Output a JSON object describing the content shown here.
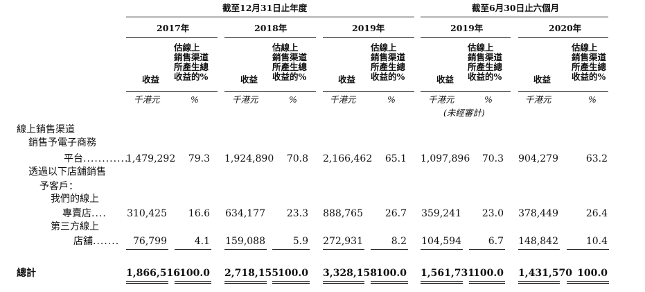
{
  "header": {
    "period_full_year": "截至12月31日止年度",
    "period_six_months": "截至6月30日止六個月",
    "years": [
      "2017年",
      "2018年",
      "2019年",
      "2019年",
      "2020年"
    ],
    "col_revenue": "收益",
    "col_pct_lines": [
      "估線上",
      "銷售渠道",
      "所產生總",
      "收益的%"
    ],
    "unit_revenue": "千港元",
    "unit_pct": "%",
    "unaudited": "(未經審計)"
  },
  "rows": [
    {
      "label": "線上銷售渠道",
      "values": []
    },
    {
      "label": "銷售予電子商務",
      "values": []
    },
    {
      "label": "平台",
      "leader": "............",
      "values": [
        "1,479,292",
        "79.3",
        "1,924,890",
        "70.8",
        "2,166,462",
        "65.1",
        "1,097,896",
        "70.3",
        "904,279",
        "63.2"
      ]
    },
    {
      "label": "透過以下店舖銷售",
      "values": []
    },
    {
      "label": "予客戶：",
      "values": []
    },
    {
      "label": "我們的線上",
      "values": []
    },
    {
      "label": "專賣店",
      "leader": " ....",
      "values": [
        "310,425",
        "16.6",
        "634,177",
        "23.3",
        "888,765",
        "26.7",
        "359,241",
        "23.0",
        "378,449",
        "26.4"
      ]
    },
    {
      "label": "第三方線上",
      "values": []
    },
    {
      "label": "店舖",
      "leader": ".......",
      "values": [
        "76,799",
        "4.1",
        "159,088",
        "5.9",
        "272,931",
        "8.2",
        "104,594",
        "6.7",
        "148,842",
        "10.4"
      ]
    }
  ],
  "total": {
    "label": "總計",
    "values": [
      "1,866,516",
      "100.0",
      "2,718,155",
      "100.0",
      "3,328,158",
      "100.0",
      "1,561,731",
      "100.0",
      "1,431,570",
      "100.0"
    ]
  }
}
